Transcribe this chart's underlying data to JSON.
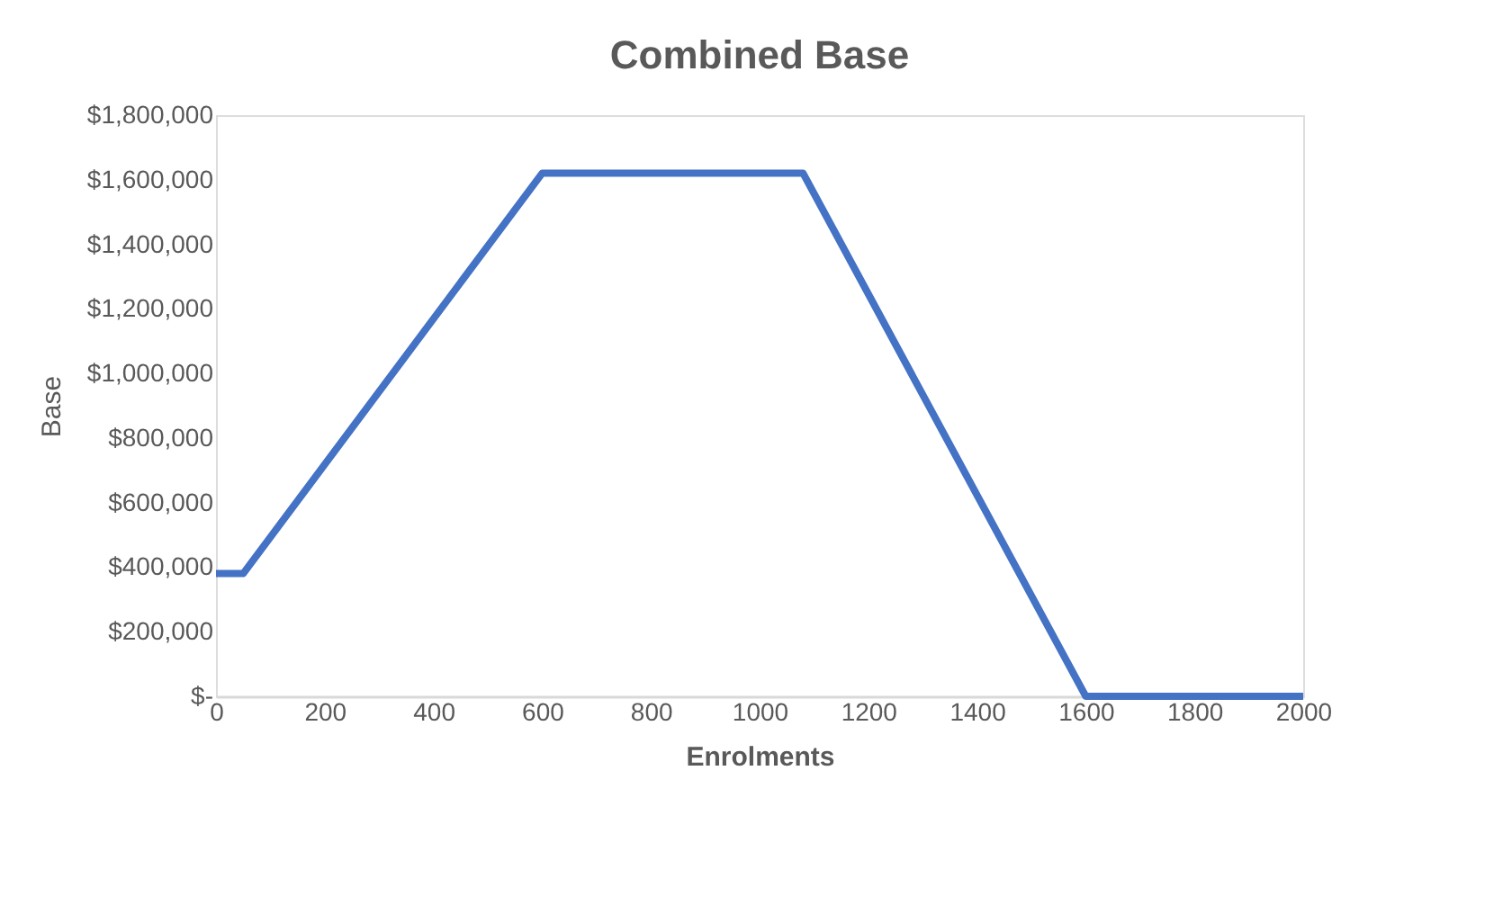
{
  "chart_data": {
    "type": "line",
    "title": "Combined Base",
    "xlabel": "Enrolments",
    "ylabel": "Base",
    "x": [
      0,
      50,
      600,
      1080,
      1600,
      2000
    ],
    "series": [
      {
        "color": "#4472c4",
        "values": [
          380000,
          380000,
          1620000,
          1620000,
          0,
          0
        ]
      }
    ],
    "xlim": [
      0,
      2000
    ],
    "xticks": [
      0,
      200,
      400,
      600,
      800,
      1000,
      1200,
      1400,
      1600,
      1800,
      2000
    ],
    "ylim": [
      0,
      1800000
    ],
    "yticks": [
      {
        "value": 0,
        "label": "$-"
      },
      {
        "value": 200000,
        "label": "$200,000"
      },
      {
        "value": 400000,
        "label": "$400,000"
      },
      {
        "value": 600000,
        "label": "$600,000"
      },
      {
        "value": 800000,
        "label": "$800,000"
      },
      {
        "value": 1000000,
        "label": "$1,000,000"
      },
      {
        "value": 1200000,
        "label": "$1,200,000"
      },
      {
        "value": 1400000,
        "label": "$1,400,000"
      },
      {
        "value": 1600000,
        "label": "$1,600,000"
      },
      {
        "value": 1800000,
        "label": "$1,800,000"
      }
    ],
    "grid": false,
    "legend": false,
    "marker": "none",
    "line_style": "solid"
  }
}
